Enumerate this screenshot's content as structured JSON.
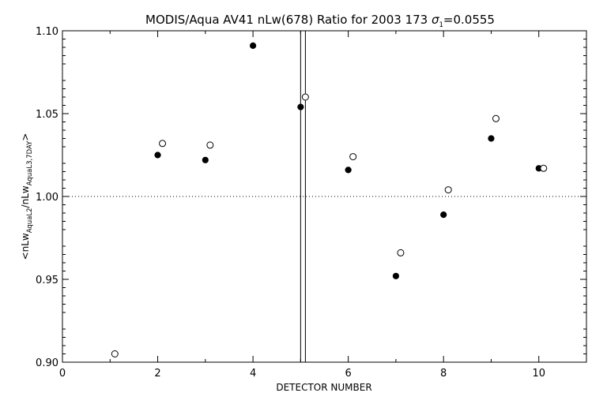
{
  "chart_data": {
    "type": "scatter",
    "title_main": "MODIS/Aqua AV41 nLw(678) Ratio for 2003 173 ",
    "title_sigma": "σ",
    "title_sigma_sub": "1",
    "title_sigma_value": "=0.0555",
    "xlabel": "DETECTOR NUMBER",
    "ylabel": {
      "open": "<nLw",
      "sub1": "AquaL2",
      "mid": "/nLw",
      "sub2": "AquaL3,7DAY",
      "close": ">"
    },
    "xlim": [
      0,
      11
    ],
    "ylim": [
      0.9,
      1.1
    ],
    "x_ticks": [
      0,
      2,
      4,
      6,
      8,
      10
    ],
    "y_ticks": [
      0.9,
      0.95,
      1.0,
      1.05,
      1.1
    ],
    "x_tick_labels": [
      "0",
      "2",
      "4",
      "6",
      "8",
      "10"
    ],
    "y_tick_labels": [
      "0.90",
      "0.95",
      "1.00",
      "1.05",
      "1.10"
    ],
    "reference_line_y": 1.0,
    "vertical_lines_x": [
      5.0,
      5.1
    ],
    "series": [
      {
        "marker": "filled-circle",
        "x": [
          2,
          3,
          4,
          5,
          6,
          7,
          8,
          9,
          10
        ],
        "y": [
          1.025,
          1.022,
          1.091,
          1.054,
          1.016,
          0.952,
          0.989,
          1.035,
          1.017
        ]
      },
      {
        "marker": "open-circle",
        "x": [
          1.1,
          2.1,
          3.1,
          5.1,
          6.1,
          7.1,
          8.1,
          9.1,
          10.1
        ],
        "y": [
          0.905,
          1.032,
          1.031,
          1.06,
          1.024,
          0.966,
          1.004,
          1.047,
          1.017
        ]
      }
    ]
  }
}
